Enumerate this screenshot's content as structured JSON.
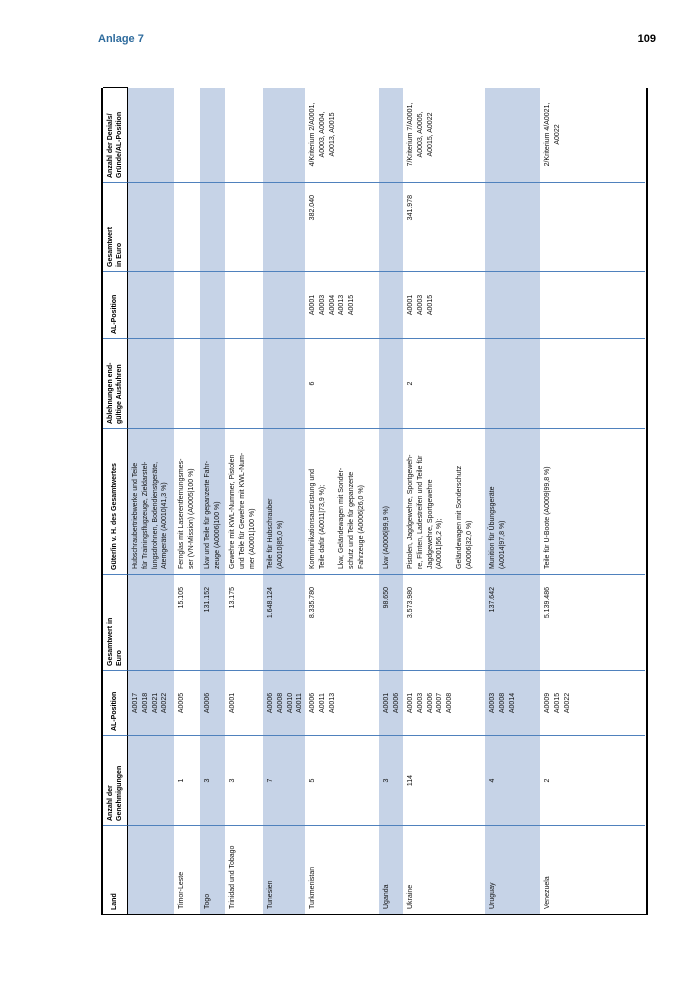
{
  "page": {
    "annex_label": "Anlage 7",
    "page_number": "109"
  },
  "colors": {
    "stripe": "#c6d3e7",
    "rule": "#4f81bd",
    "title": "#2e6b9d",
    "border": "#000000"
  },
  "table": {
    "headers": {
      "land": "Land",
      "anzahl": "Anzahl der\nGenehmigungen",
      "al": "AL-Position",
      "gesamtwert": "Gesamtwert in\nEuro",
      "gueter": "Güter/in v. H. des Gesamtwertes",
      "ablehnungen": "Ablehnungen end-\ngültige Ausfuhren",
      "al2": "AL-Position",
      "gesamtwert2": "Gesamtwert\nin Euro",
      "denials": "Anzahl der Denials/\nGründe/AL-Position"
    },
    "rows": [
      {
        "land": "",
        "anzahl": "",
        "al": "A0017\nA0018\nA0021\nA0022",
        "gesamtwert": "",
        "gueter": "Hubschraubertriebwerke und Teile\nfür Trainingsflugzeuge, Zieldarstel-\nlungsdrohnen, Bodendienstgeräte,\nAtemgeräte (A0010|41,3 %)",
        "ablehnungen": "",
        "al2": "",
        "gesamtwert2": "",
        "denials": ""
      },
      {
        "land": "Timor-Leste",
        "anzahl": "1",
        "al": "A0005",
        "gesamtwert": "15.105",
        "gueter": "Fernglas mit Laserentfernungsmes-\nser (VN-Mission) (A0005|100 %)",
        "ablehnungen": "",
        "al2": "",
        "gesamtwert2": "",
        "denials": ""
      },
      {
        "land": "Togo",
        "anzahl": "3",
        "al": "A0006",
        "gesamtwert": "131.152",
        "gueter": "Lkw und Teile für gepanzerte Fahr-\nzeuge (A0006|100 %)",
        "ablehnungen": "",
        "al2": "",
        "gesamtwert2": "",
        "denials": ""
      },
      {
        "land": "Trinidad und Tobago",
        "anzahl": "3",
        "al": "A0001",
        "gesamtwert": "13.175",
        "gueter": "Gewehre mit KWL-Nummer, Pistolen\nund Teile für Gewehre mit KWL-Num-\nmer (A0001|100 %)",
        "ablehnungen": "",
        "al2": "",
        "gesamtwert2": "",
        "denials": ""
      },
      {
        "land": "Tunesien",
        "anzahl": "7",
        "al": "A0006\nA0008\nA0010\nA0011",
        "gesamtwert": "1.648.124",
        "gueter": "Teile für Hubschrauber\n(A0010|85,0 %)",
        "ablehnungen": "",
        "al2": "",
        "gesamtwert2": "",
        "denials": ""
      },
      {
        "land": "Turkmenistan",
        "anzahl": "5",
        "al": "A0006\nA0011\nA0013",
        "gesamtwert": "8.335.780",
        "gueter": "Kommunikationsausrüstung und\nTeile dafür (A0011|73,9 %);\n\nLkw, Geländewagen mit Sonder-\nschutz und Teile für gepanzerte\nFahrzeuge (A0006|26,0 %)",
        "ablehnungen": "6",
        "al2": "A0001\nA0003\nA0004\nA0013\nA0015",
        "gesamtwert2": "382.040",
        "denials": "4/Kriterium 2/A0001,\nA0003, A0004,\nA0013, A0015"
      },
      {
        "land": "Uganda",
        "anzahl": "3",
        "al": "A0001\nA0006",
        "gesamtwert": "98.650",
        "gueter": "Lkw (A0006|99,9 %)",
        "ablehnungen": "",
        "al2": "",
        "gesamtwert2": "",
        "denials": ""
      },
      {
        "land": "Ukraine",
        "anzahl": "114",
        "al": "A0001\nA0003\nA0006\nA0007\nA0008",
        "gesamtwert": "3.573.980",
        "gueter": "Pistolen, Jagdgewehre, Sportgeweh-\nre, Flinten, Ladestreifen und Teile für\nJagdgewehre, Sportgewehre\n(A0001|56,2 %);\n\nGeländewagen mit Sonderschutz\n(A0006|32,0 %)",
        "ablehnungen": "2",
        "al2": "A0001\nA0003\nA0015",
        "gesamtwert2": "341.978",
        "denials": "7/Kriterium 7/A0001,\nA0003, A0005,\nA0015, A0022"
      },
      {
        "land": "Uruguay",
        "anzahl": "4",
        "al": "A0003\nA0008\nA0014",
        "gesamtwert": "137.642",
        "gueter": "Munition für Übungsgeräte\n(A0014|97,8 %)",
        "ablehnungen": "",
        "al2": "",
        "gesamtwert2": "",
        "denials": ""
      },
      {
        "land": "Venezuela",
        "anzahl": "2",
        "al": "A0009\nA0015\nA0022",
        "gesamtwert": "5.139.486",
        "gueter": "Teile für U-Boote (A0009|99,8 %)",
        "ablehnungen": "",
        "al2": "",
        "gesamtwert2": "",
        "denials": "2/Kriterium 4/A0021,\nA0022"
      }
    ]
  }
}
